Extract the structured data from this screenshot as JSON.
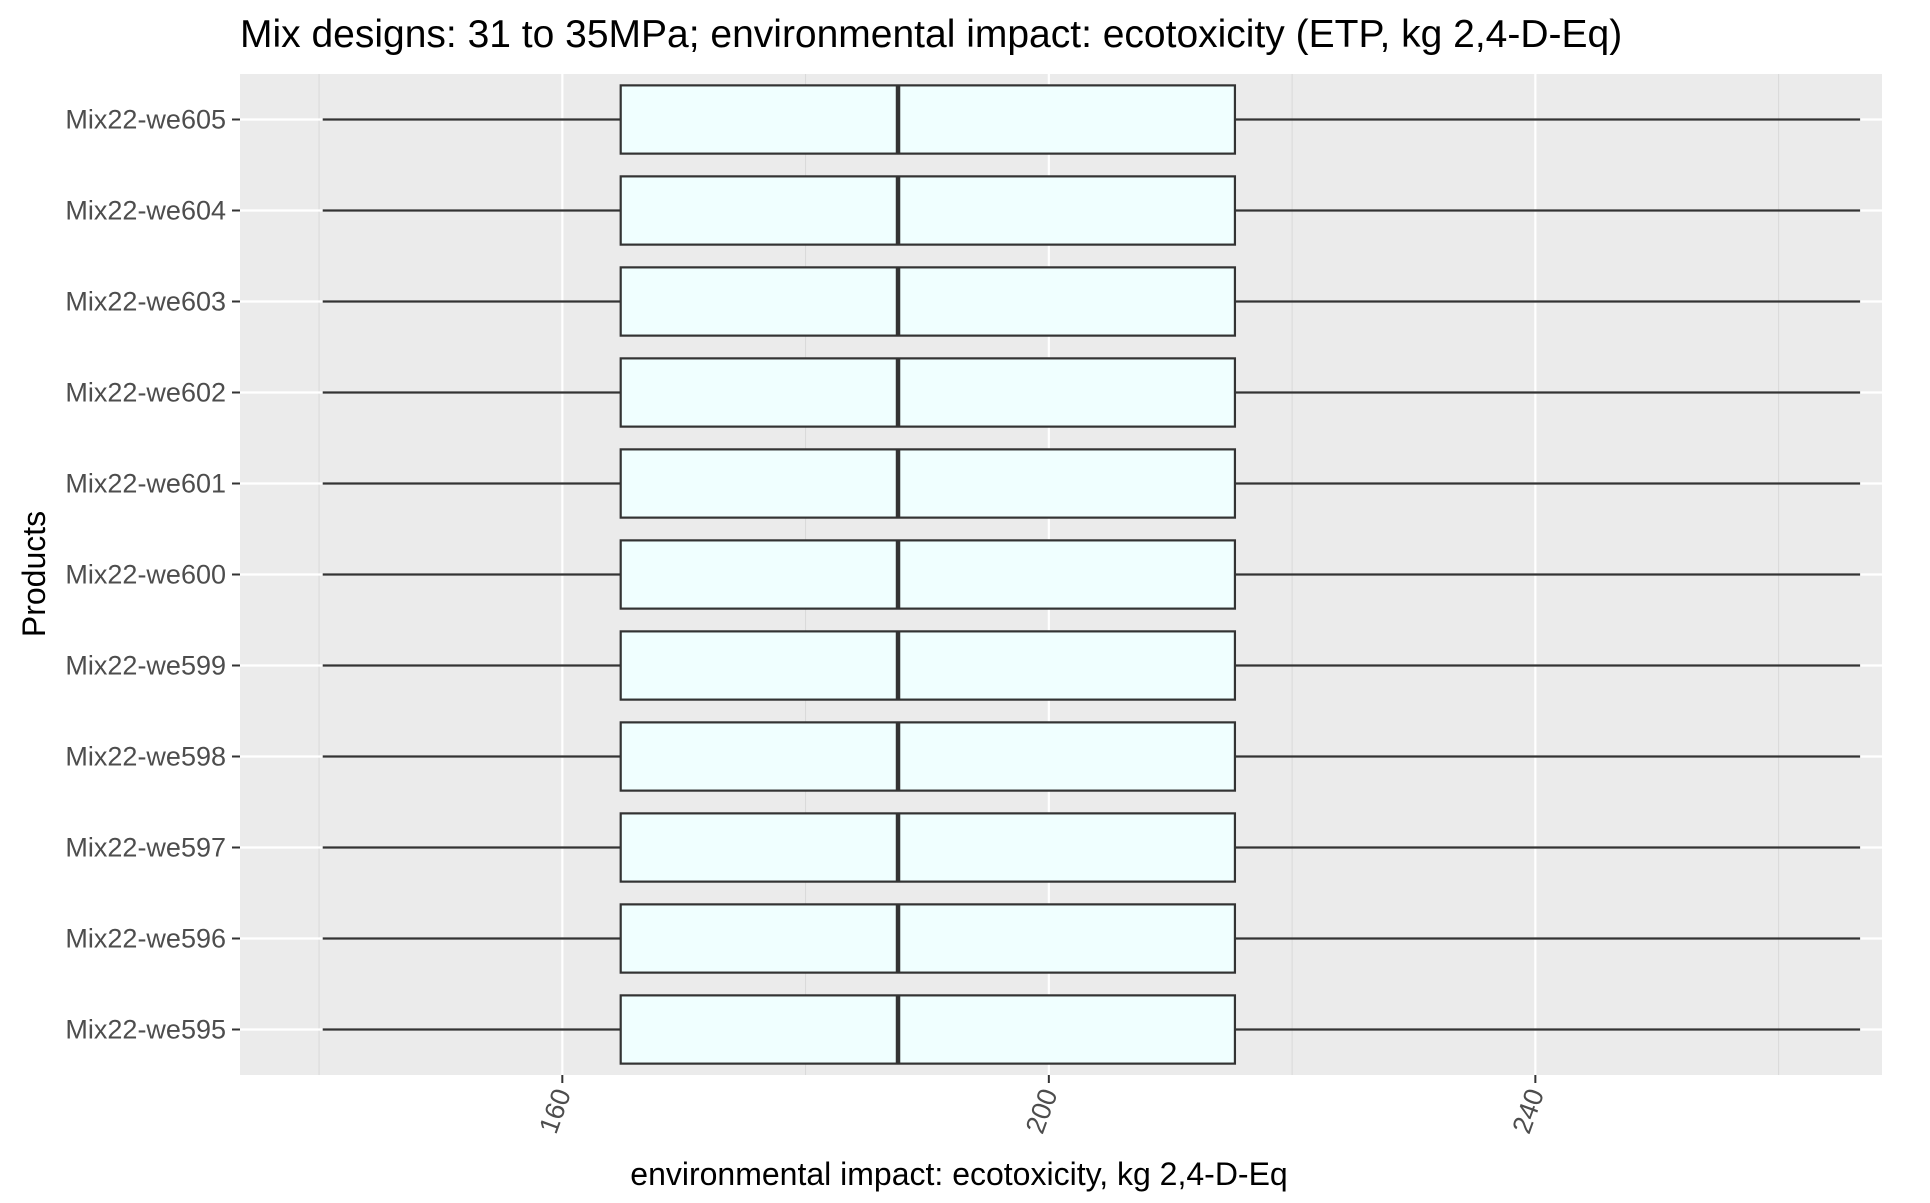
{
  "chart_data": {
    "type": "boxplot",
    "orientation": "horizontal",
    "title": "Mix designs: 31 to 35MPa; environmental impact: ecotoxicity (ETP, kg 2,4-D-Eq)",
    "xlabel": "environmental impact: ecotoxicity, kg 2,4-D-Eq",
    "ylabel": "Products",
    "xlim": [
      133.5,
      268.5
    ],
    "x_ticks": [
      160,
      200,
      240
    ],
    "x_tick_labels": [
      "160",
      "200",
      "240"
    ],
    "x_minor_ticks": [
      140,
      180,
      220,
      260
    ],
    "grid": true,
    "legend": "none",
    "categories": [
      "Mix22-we595",
      "Mix22-we596",
      "Mix22-we597",
      "Mix22-we598",
      "Mix22-we599",
      "Mix22-we600",
      "Mix22-we601",
      "Mix22-we602",
      "Mix22-we603",
      "Mix22-we604",
      "Mix22-we605"
    ],
    "boxes": [
      {
        "category": "Mix22-we595",
        "min": 140.3,
        "q1": 164.8,
        "median": 187.6,
        "q3": 215.3,
        "max": 266.7
      },
      {
        "category": "Mix22-we596",
        "min": 140.3,
        "q1": 164.8,
        "median": 187.6,
        "q3": 215.3,
        "max": 266.7
      },
      {
        "category": "Mix22-we597",
        "min": 140.3,
        "q1": 164.8,
        "median": 187.6,
        "q3": 215.3,
        "max": 266.7
      },
      {
        "category": "Mix22-we598",
        "min": 140.3,
        "q1": 164.8,
        "median": 187.6,
        "q3": 215.3,
        "max": 266.7
      },
      {
        "category": "Mix22-we599",
        "min": 140.3,
        "q1": 164.8,
        "median": 187.6,
        "q3": 215.3,
        "max": 266.7
      },
      {
        "category": "Mix22-we600",
        "min": 140.3,
        "q1": 164.8,
        "median": 187.6,
        "q3": 215.3,
        "max": 266.7
      },
      {
        "category": "Mix22-we601",
        "min": 140.3,
        "q1": 164.8,
        "median": 187.6,
        "q3": 215.3,
        "max": 266.7
      },
      {
        "category": "Mix22-we602",
        "min": 140.3,
        "q1": 164.8,
        "median": 187.6,
        "q3": 215.3,
        "max": 266.7
      },
      {
        "category": "Mix22-we603",
        "min": 140.3,
        "q1": 164.8,
        "median": 187.6,
        "q3": 215.3,
        "max": 266.7
      },
      {
        "category": "Mix22-we604",
        "min": 140.3,
        "q1": 164.8,
        "median": 187.6,
        "q3": 215.3,
        "max": 266.7
      },
      {
        "category": "Mix22-we605",
        "min": 140.3,
        "q1": 164.8,
        "median": 187.6,
        "q3": 215.3,
        "max": 266.7
      }
    ],
    "colors": {
      "panel_background": "#ebebeb",
      "major_grid": "#ffffff",
      "minor_grid": "#d9d9d9",
      "box_fill": "#f0ffff",
      "box_stroke": "#333333",
      "whisker": "#333333",
      "tick_label": "#4d4d4d",
      "text": "#000000"
    }
  }
}
